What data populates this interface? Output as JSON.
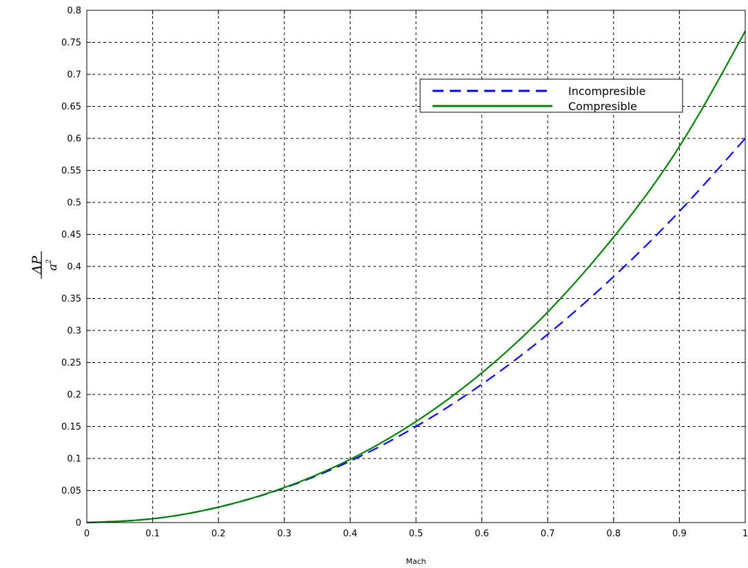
{
  "chart_data": {
    "type": "line",
    "title": "",
    "xlabel": "Mach",
    "ylabel": {
      "numerator": "ΔP",
      "denominator": "a",
      "exponent": "2"
    },
    "xlim": [
      0,
      1
    ],
    "ylim": [
      0,
      0.8
    ],
    "grid": true,
    "legend_position": "top-right",
    "x_ticks": [
      "0",
      "0.1",
      "0.2",
      "0.3",
      "0.4",
      "0.5",
      "0.6",
      "0.7",
      "0.8",
      "0.9",
      "1"
    ],
    "y_ticks": [
      "0",
      "0.05",
      "0.1",
      "0.15",
      "0.2",
      "0.25",
      "0.3",
      "0.35",
      "0.4",
      "0.45",
      "0.5",
      "0.55",
      "0.6",
      "0.65",
      "0.7",
      "0.75",
      "0.8"
    ],
    "x": [
      0,
      0.1,
      0.2,
      0.3,
      0.4,
      0.5,
      0.6,
      0.7,
      0.8,
      0.9,
      1.0
    ],
    "series": [
      {
        "name": "Incompresible",
        "color": "#0000ff",
        "style": "dashed",
        "values": [
          0,
          0.006,
          0.024,
          0.054,
          0.096,
          0.15,
          0.216,
          0.294,
          0.384,
          0.486,
          0.6
        ]
      },
      {
        "name": "Compresible",
        "color": "#008000",
        "style": "solid",
        "values": [
          0,
          0.006,
          0.0241,
          0.0547,
          0.0987,
          0.1578,
          0.2338,
          0.3288,
          0.4457,
          0.5874,
          0.7677
        ]
      }
    ]
  }
}
